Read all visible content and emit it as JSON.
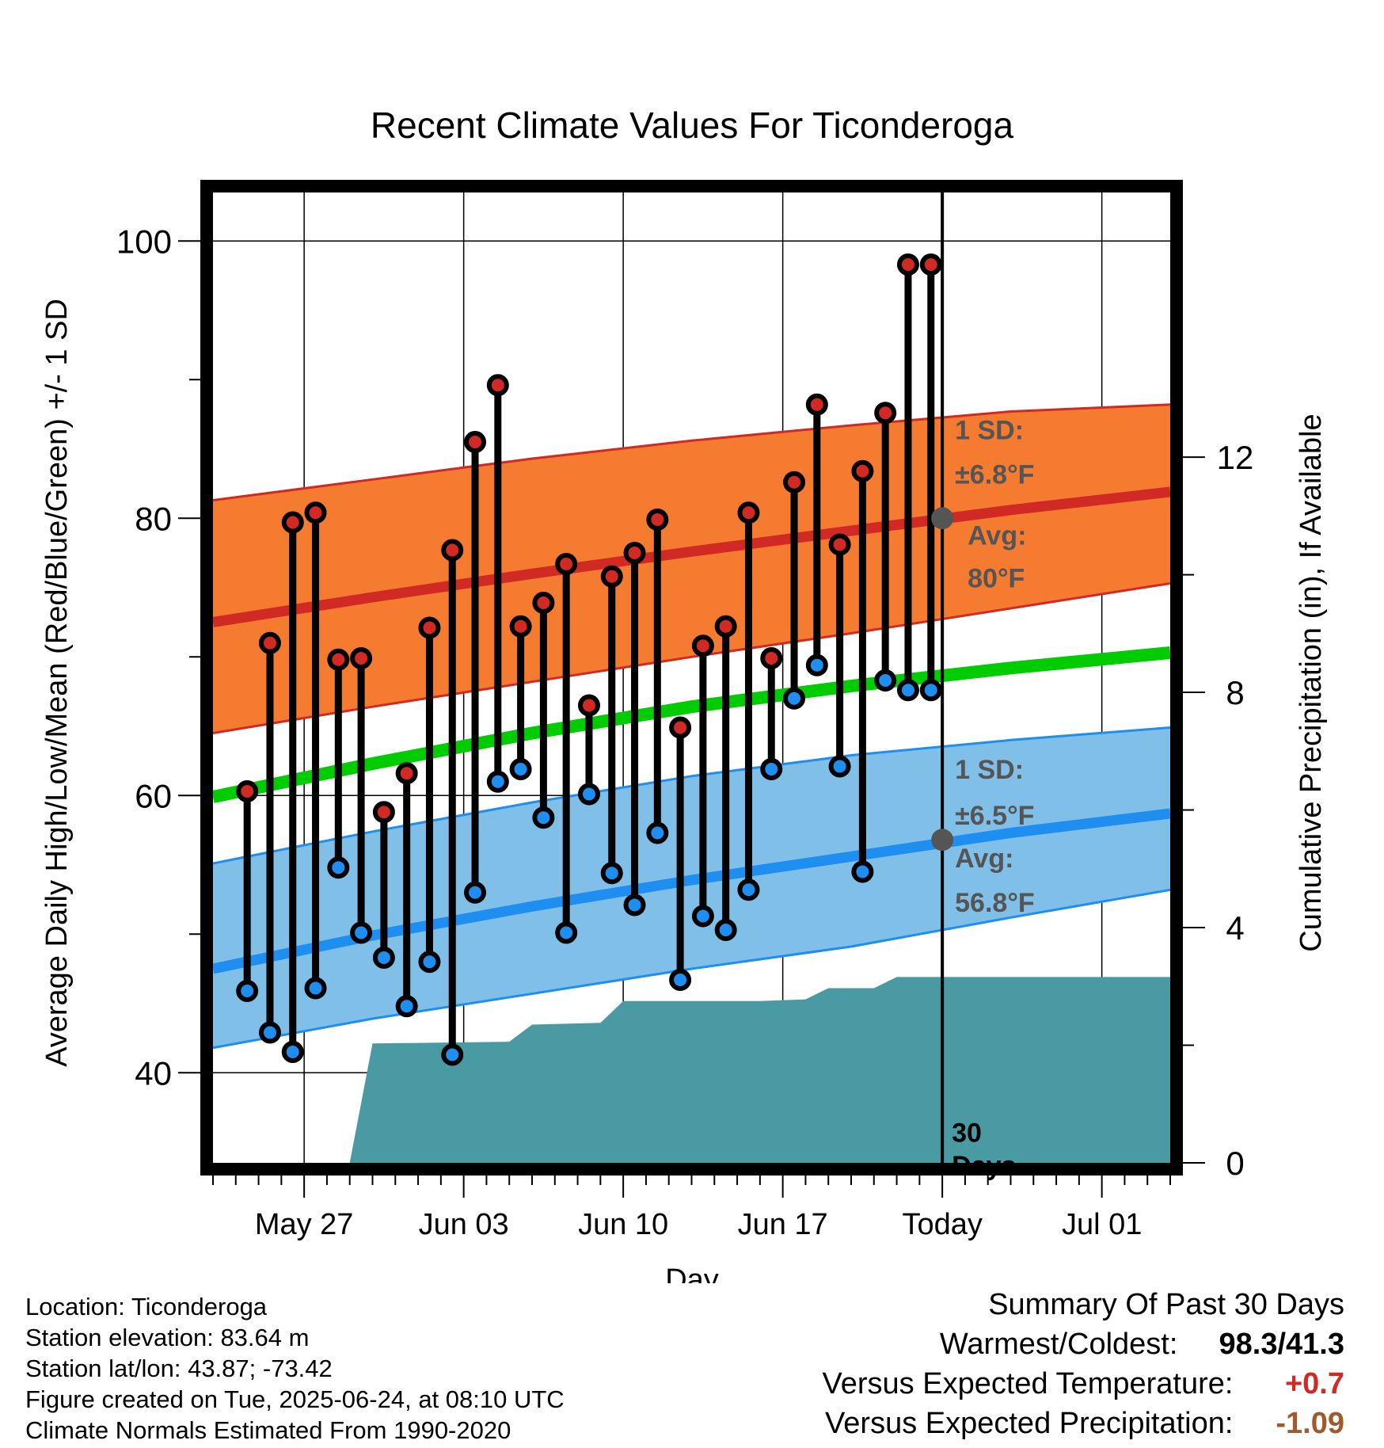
{
  "title": "Recent Climate Values For Ticonderoga",
  "axes": {
    "xlabel": "Day",
    "ylabel_left": "Average Daily High/Low/Mean (Red/Blue/Green) +/- 1 SD",
    "ylabel_right": "Cumulative Precipitation (in), If Available",
    "left_ticks": [
      "40",
      "60",
      "80",
      "100"
    ],
    "right_ticks": [
      "0",
      "4",
      "8",
      "12"
    ],
    "x_ticks": [
      "May 27",
      "Jun 03",
      "Jun 10",
      "Jun 17",
      "Today",
      "Jul 01"
    ]
  },
  "annotations": {
    "high_sd_line1": "1 SD:",
    "high_sd_line2": "±6.8°F",
    "high_avg_line1": "Avg:",
    "high_avg_line2": "80°F",
    "low_sd_line1": "1 SD:",
    "low_sd_line2": "±6.5°F",
    "low_avg_line1": "Avg:",
    "low_avg_line2": "56.8°F",
    "window_line1": "30",
    "window_line2": "Days"
  },
  "chart_data": {
    "type": "line",
    "title": "Recent Climate Values For Ticonderoga",
    "xlabel": "Day",
    "ylabel": "Average Daily High/Low/Mean (Red/Blue/Green) +/- 1 SD",
    "y2label": "Cumulative Precipitation (in), If Available",
    "ylim": [
      33.5,
      103.5
    ],
    "y2lim": [
      0,
      16.5
    ],
    "xlim": [
      "2025-05-23",
      "2025-07-04"
    ],
    "today": "2025-06-24",
    "normals": {
      "dates": [
        "2025-05-23",
        "2025-05-30",
        "2025-06-06",
        "2025-06-13",
        "2025-06-20",
        "2025-06-27",
        "2025-07-04"
      ],
      "avg_high": [
        72.5,
        74.3,
        76.0,
        77.6,
        79.1,
        80.6,
        81.9
      ],
      "high_sd_upper": [
        81.3,
        82.8,
        84.3,
        85.6,
        86.7,
        87.7,
        88.2
      ],
      "high_sd_lower": [
        64.5,
        66.4,
        68.2,
        70.0,
        71.7,
        73.5,
        75.3
      ],
      "avg_mean": [
        59.9,
        62.3,
        64.5,
        66.4,
        67.9,
        69.2,
        70.3
      ],
      "avg_low": [
        47.5,
        49.9,
        52.0,
        53.9,
        55.6,
        57.3,
        58.7
      ],
      "low_sd_upper": [
        55.1,
        57.4,
        59.5,
        61.4,
        62.9,
        64.0,
        64.9
      ],
      "low_sd_lower": [
        41.8,
        43.9,
        45.7,
        47.5,
        49.1,
        51.2,
        53.2
      ]
    },
    "observed": {
      "dates": [
        "2025-05-24",
        "2025-05-25",
        "2025-05-26",
        "2025-05-27",
        "2025-05-28",
        "2025-05-29",
        "2025-05-30",
        "2025-05-31",
        "2025-06-01",
        "2025-06-02",
        "2025-06-03",
        "2025-06-04",
        "2025-06-05",
        "2025-06-06",
        "2025-06-07",
        "2025-06-08",
        "2025-06-09",
        "2025-06-10",
        "2025-06-11",
        "2025-06-12",
        "2025-06-13",
        "2025-06-14",
        "2025-06-15",
        "2025-06-16",
        "2025-06-17",
        "2025-06-18",
        "2025-06-19",
        "2025-06-20",
        "2025-06-21",
        "2025-06-22",
        "2025-06-23"
      ],
      "high": [
        60.3,
        71.0,
        79.7,
        80.4,
        69.8,
        69.9,
        58.8,
        61.6,
        72.1,
        77.7,
        85.5,
        89.6,
        72.2,
        73.9,
        76.7,
        66.5,
        75.8,
        77.5,
        79.9,
        64.9,
        70.8,
        72.2,
        80.4,
        69.9,
        82.6,
        88.2,
        78.1,
        83.4,
        87.6,
        98.3,
        98.3
      ],
      "low": [
        45.9,
        42.9,
        41.5,
        46.1,
        54.8,
        50.1,
        48.3,
        44.8,
        48.0,
        41.3,
        53.0,
        61.0,
        61.9,
        58.4,
        50.1,
        60.1,
        54.4,
        52.1,
        57.3,
        46.7,
        51.3,
        50.3,
        53.2,
        61.9,
        67.0,
        69.4,
        62.1,
        54.5,
        68.3,
        67.6,
        67.6
      ]
    },
    "precipitation_cumulative": {
      "dates": [
        "2025-05-29",
        "2025-05-30",
        "2025-06-05",
        "2025-06-06",
        "2025-06-09",
        "2025-06-10",
        "2025-06-16",
        "2025-06-18",
        "2025-06-19",
        "2025-06-21",
        "2025-06-22",
        "2025-07-04"
      ],
      "values": [
        0.0,
        2.03,
        2.06,
        2.35,
        2.38,
        2.75,
        2.75,
        2.78,
        2.97,
        2.97,
        3.16,
        3.16
      ]
    },
    "grid": true,
    "colors": {
      "high_band": "#f47b30",
      "high_line": "#d12a24",
      "mean_line": "#00cc00",
      "low_band": "#7fbfe8",
      "low_line": "#1e8ff0",
      "precip": "#4a9aa3",
      "high_marker": "#d12a24",
      "low_marker": "#1e8ff0",
      "annotation_gray": "#555555",
      "warmer": "#d12a24",
      "drier": "#a05a2c"
    }
  },
  "footer": {
    "location": "Location: Ticonderoga",
    "elevation": "Station elevation: 83.64 m",
    "latlon": "Station lat/lon: 43.87; -73.42",
    "created": "Figure created on Tue, 2025-06-24, at 08:10 UTC",
    "normals": "Climate Normals Estimated From 1990-2020"
  },
  "summary": {
    "heading": "Summary Of Past 30 Days",
    "warm_cold_label": "Warmest/Coldest:",
    "warm_cold_value": "98.3/41.3",
    "temp_label": "Versus Expected Temperature:",
    "temp_value": "+0.7",
    "precip_label": "Versus Expected Precipitation:",
    "precip_value": "-1.09"
  }
}
